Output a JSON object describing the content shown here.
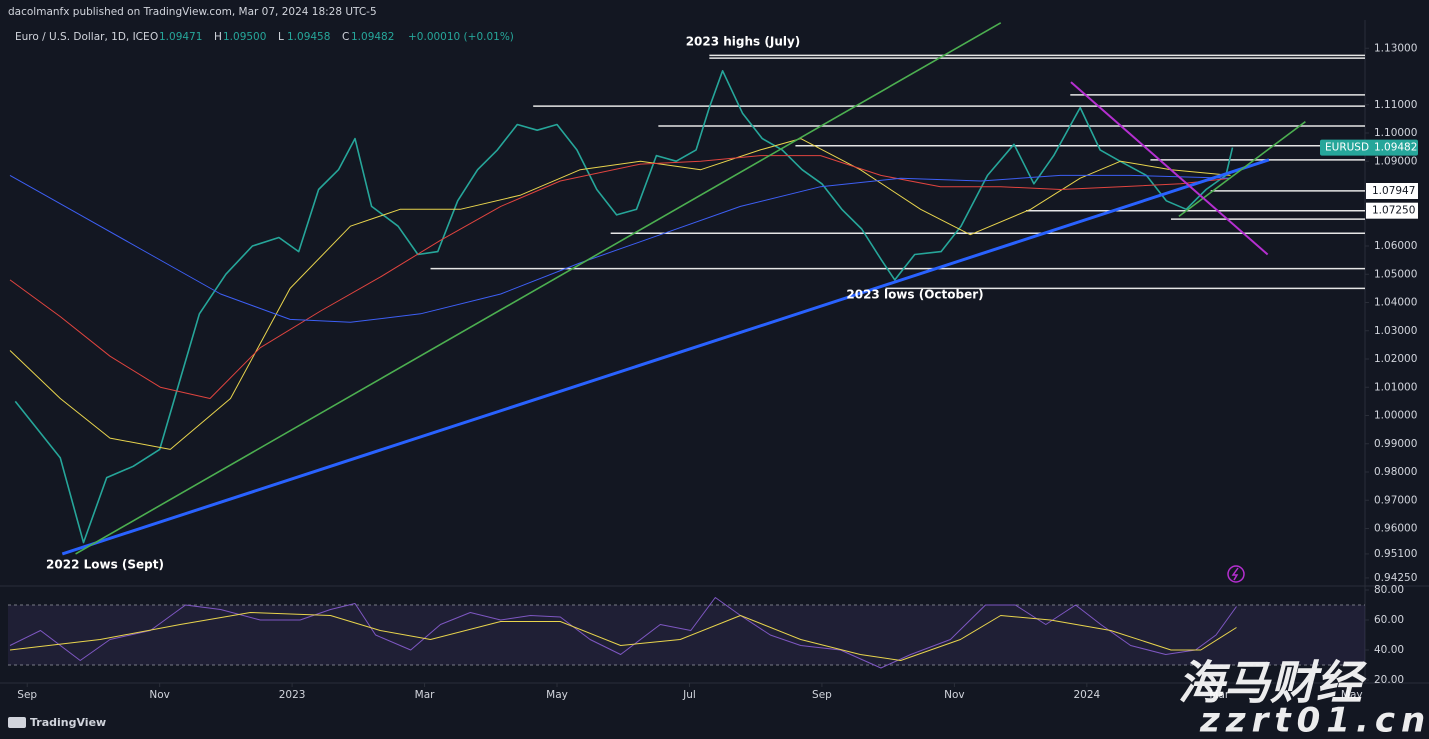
{
  "header": {
    "publisher": "dacolmanfx published on TradingView.com, Mar 07, 2024 18:28 UTC-5"
  },
  "footer": {
    "brand": "TradingView"
  },
  "watermark": {
    "cn": "海马财经",
    "url": "zzrt01.cn"
  },
  "chart_data": [
    {
      "type": "line",
      "title": "Euro / U.S. Dollar, 1D, ICE",
      "ohlc": [
        {
          "label": "O",
          "value": "1.09471"
        },
        {
          "label": "H",
          "value": "1.09500"
        },
        {
          "label": "L",
          "value": "1.09458"
        },
        {
          "label": "C",
          "value": "1.09482"
        }
      ],
      "change": "+0.00010 (+0.01%)",
      "annotations": [
        "2023 highs (July)",
        "2023 lows (October)",
        "2022 Lows (Sept)"
      ],
      "xlim": [
        -0.29,
        20.2
      ],
      "xticks": [
        {
          "value": 0,
          "label": "Sep"
        },
        {
          "value": 2,
          "label": "Nov"
        },
        {
          "value": 4,
          "label": "2023"
        },
        {
          "value": 6,
          "label": "Mar"
        },
        {
          "value": 8,
          "label": "May"
        },
        {
          "value": 10,
          "label": "Jul"
        },
        {
          "value": 12,
          "label": "Sep"
        },
        {
          "value": 14,
          "label": "Nov"
        },
        {
          "value": 16,
          "label": "2024"
        },
        {
          "value": 18,
          "label": "Mar"
        },
        {
          "value": 20,
          "label": "May"
        }
      ],
      "ylim": [
        0.94,
        1.14
      ],
      "yticks": [
        {
          "value": 0.9425,
          "label": "0.94250"
        },
        {
          "value": 0.951,
          "label": "0.95100"
        },
        {
          "value": 0.96,
          "label": "0.96000"
        },
        {
          "value": 0.97,
          "label": "0.97000"
        },
        {
          "value": 0.98,
          "label": "0.98000"
        },
        {
          "value": 0.99,
          "label": "0.99000"
        },
        {
          "value": 1.0,
          "label": "1.00000"
        },
        {
          "value": 1.01,
          "label": "1.01000"
        },
        {
          "value": 1.02,
          "label": "1.02000"
        },
        {
          "value": 1.03,
          "label": "1.03000"
        },
        {
          "value": 1.04,
          "label": "1.04000"
        },
        {
          "value": 1.05,
          "label": "1.05000"
        },
        {
          "value": 1.06,
          "label": "1.06000"
        },
        {
          "value": 1.09,
          "label": "1.09000"
        },
        {
          "value": 1.1,
          "label": "1.10000"
        },
        {
          "value": 1.11,
          "label": "1.11000"
        },
        {
          "value": 1.13,
          "label": "1.13000"
        }
      ],
      "grid": false,
      "marked_prices": [
        {
          "value": 1.07947,
          "label": "1.07947"
        },
        {
          "value": 1.0725,
          "label": "1.07250"
        }
      ],
      "last_price": {
        "name": "EURUSD",
        "value": 1.09482,
        "label": "1.09482",
        "color": "#26a69a"
      },
      "series": [
        {
          "name": "EURUSD",
          "color": "#26a69a",
          "width": 1.6,
          "x": [
            -0.18,
            0.5,
            0.85,
            1.2,
            1.6,
            2.0,
            2.3,
            2.6,
            3.0,
            3.4,
            3.8,
            4.1,
            4.4,
            4.7,
            4.95,
            5.2,
            5.6,
            5.9,
            6.2,
            6.5,
            6.8,
            7.1,
            7.4,
            7.7,
            8.0,
            8.3,
            8.6,
            8.9,
            9.2,
            9.5,
            9.8,
            10.1,
            10.3,
            10.5,
            10.8,
            11.1,
            11.4,
            11.7,
            12.0,
            12.3,
            12.6,
            12.9,
            13.1,
            13.4,
            13.8,
            14.1,
            14.5,
            14.9,
            15.2,
            15.5,
            15.9,
            16.2,
            16.5,
            16.9,
            17.2,
            17.5,
            17.8,
            18.1,
            18.2
          ],
          "values": [
            1.005,
            0.985,
            0.955,
            0.978,
            0.982,
            0.988,
            1.012,
            1.036,
            1.05,
            1.06,
            1.063,
            1.058,
            1.08,
            1.087,
            1.098,
            1.074,
            1.067,
            1.057,
            1.058,
            1.076,
            1.087,
            1.094,
            1.103,
            1.101,
            1.103,
            1.094,
            1.08,
            1.071,
            1.073,
            1.092,
            1.09,
            1.094,
            1.109,
            1.122,
            1.107,
            1.098,
            1.094,
            1.087,
            1.082,
            1.073,
            1.066,
            1.055,
            1.048,
            1.057,
            1.058,
            1.067,
            1.085,
            1.096,
            1.082,
            1.092,
            1.109,
            1.094,
            1.09,
            1.085,
            1.076,
            1.073,
            1.08,
            1.085,
            1.09482
          ]
        },
        {
          "color": "#e8d44d",
          "width": 1,
          "x": [
            -0.26,
            0.5,
            1.25,
            2.16,
            3.07,
            3.97,
            4.88,
            5.63,
            6.54,
            7.45,
            8.35,
            9.26,
            10.17,
            11.07,
            11.68,
            12.58,
            13.49,
            14.24,
            15.15,
            15.9,
            16.51,
            17.27,
            18.17
          ],
          "values": [
            1.023,
            1.006,
            0.992,
            0.988,
            1.006,
            1.045,
            1.067,
            1.073,
            1.073,
            1.078,
            1.087,
            1.09,
            1.087,
            1.094,
            1.098,
            1.087,
            1.073,
            1.064,
            1.073,
            1.084,
            1.09,
            1.087,
            1.085
          ]
        },
        {
          "color": "#e0443f",
          "width": 1,
          "x": [
            -0.26,
            0.5,
            1.25,
            2.01,
            2.76,
            3.52,
            4.43,
            5.33,
            6.24,
            7.15,
            8.05,
            9.26,
            10.17,
            11.07,
            11.98,
            12.89,
            13.79,
            14.7,
            15.6,
            16.51,
            17.42,
            18.17
          ],
          "values": [
            1.048,
            1.035,
            1.021,
            1.01,
            1.006,
            1.024,
            1.037,
            1.049,
            1.062,
            1.074,
            1.083,
            1.089,
            1.09,
            1.092,
            1.092,
            1.085,
            1.081,
            1.081,
            1.08,
            1.081,
            1.082,
            1.084
          ]
        },
        {
          "color": "#3d5ff5",
          "width": 1,
          "x": [
            -0.26,
            0.8,
            1.86,
            2.92,
            3.97,
            4.88,
            5.94,
            7.15,
            8.35,
            9.56,
            10.77,
            11.98,
            13.19,
            14.4,
            15.6,
            16.66,
            18.17
          ],
          "values": [
            1.085,
            1.071,
            1.057,
            1.043,
            1.034,
            1.033,
            1.036,
            1.043,
            1.054,
            1.064,
            1.074,
            1.081,
            1.084,
            1.083,
            1.085,
            1.085,
            1.084
          ]
        }
      ],
      "levels": [
        {
          "value": 1.1275,
          "from": 10.3
        },
        {
          "value": 1.1265,
          "from": 10.3
        },
        {
          "value": 1.1135,
          "from": 15.75
        },
        {
          "value": 1.1095,
          "from": 7.64
        },
        {
          "value": 1.1025,
          "from": 9.53
        },
        {
          "value": 1.0955,
          "from": 11.6
        },
        {
          "value": 1.0905,
          "from": 16.96
        },
        {
          "value": 1.0795,
          "from": 17.87
        },
        {
          "value": 1.0725,
          "from": 15.08
        },
        {
          "value": 1.0695,
          "from": 17.27
        },
        {
          "value": 1.0645,
          "from": 8.81
        },
        {
          "value": 1.052,
          "from": 6.09
        },
        {
          "value": 1.045,
          "from": 12.96
        }
      ],
      "trendlines": [
        {
          "color": "#2962ff",
          "width": 3,
          "x": [
            0.53,
            18.75
          ],
          "values": [
            0.951,
            1.0905
          ]
        },
        {
          "color": "#4caf50",
          "width": 1.6,
          "x": [
            0.73,
            14.7
          ],
          "values": [
            0.951,
            1.139
          ]
        },
        {
          "color": "#4caf50",
          "width": 1.6,
          "x": [
            17.39,
            19.3
          ],
          "values": [
            1.0705,
            1.104
          ]
        },
        {
          "color": "#b52fd0",
          "width": 2,
          "x": [
            15.76,
            18.73
          ],
          "values": [
            1.118,
            1.057
          ]
        }
      ]
    },
    {
      "type": "line",
      "xlim": [
        -0.29,
        20.2
      ],
      "ylim": [
        20,
        82
      ],
      "yticks": [
        {
          "value": 80,
          "label": "80.00"
        },
        {
          "value": 60,
          "label": "60.00"
        },
        {
          "value": 40,
          "label": "40.00"
        },
        {
          "value": 20,
          "label": "20.00"
        }
      ],
      "bands": [
        30,
        70
      ],
      "band_color": "rgba(126,87,194,0.12)",
      "series": [
        {
          "color": "#7e57c2",
          "width": 1,
          "x": [
            -0.26,
            0.2,
            0.8,
            1.25,
            1.86,
            2.39,
            2.92,
            3.52,
            4.12,
            4.58,
            4.95,
            5.26,
            5.79,
            6.24,
            6.69,
            7.15,
            7.6,
            8.05,
            8.5,
            8.96,
            9.56,
            10.02,
            10.39,
            10.77,
            11.22,
            11.68,
            12.28,
            12.89,
            13.34,
            13.94,
            14.47,
            14.92,
            15.38,
            15.83,
            16.21,
            16.66,
            17.19,
            17.64,
            17.95,
            18.26
          ],
          "values": [
            43,
            53,
            33,
            47,
            53,
            70,
            67,
            60,
            60,
            67,
            71,
            50,
            40,
            57,
            65,
            60,
            63,
            62,
            47,
            37,
            57,
            53,
            75,
            63,
            50,
            43,
            40,
            28,
            37,
            47,
            70,
            70,
            57,
            70,
            57,
            43,
            37,
            40,
            50,
            69
          ]
        },
        {
          "color": "#e8d44d",
          "width": 1,
          "x": [
            -0.26,
            1.1,
            2.31,
            3.37,
            4.58,
            5.33,
            6.09,
            7.15,
            8.05,
            8.96,
            9.86,
            10.77,
            11.68,
            12.58,
            13.19,
            14.09,
            14.7,
            15.45,
            16.36,
            17.27,
            17.72,
            18.26
          ],
          "values": [
            40,
            47,
            57,
            65,
            63,
            53,
            47,
            59,
            59,
            43,
            47,
            63,
            47,
            37,
            33,
            47,
            63,
            60,
            53,
            40,
            40,
            55
          ]
        }
      ]
    }
  ]
}
